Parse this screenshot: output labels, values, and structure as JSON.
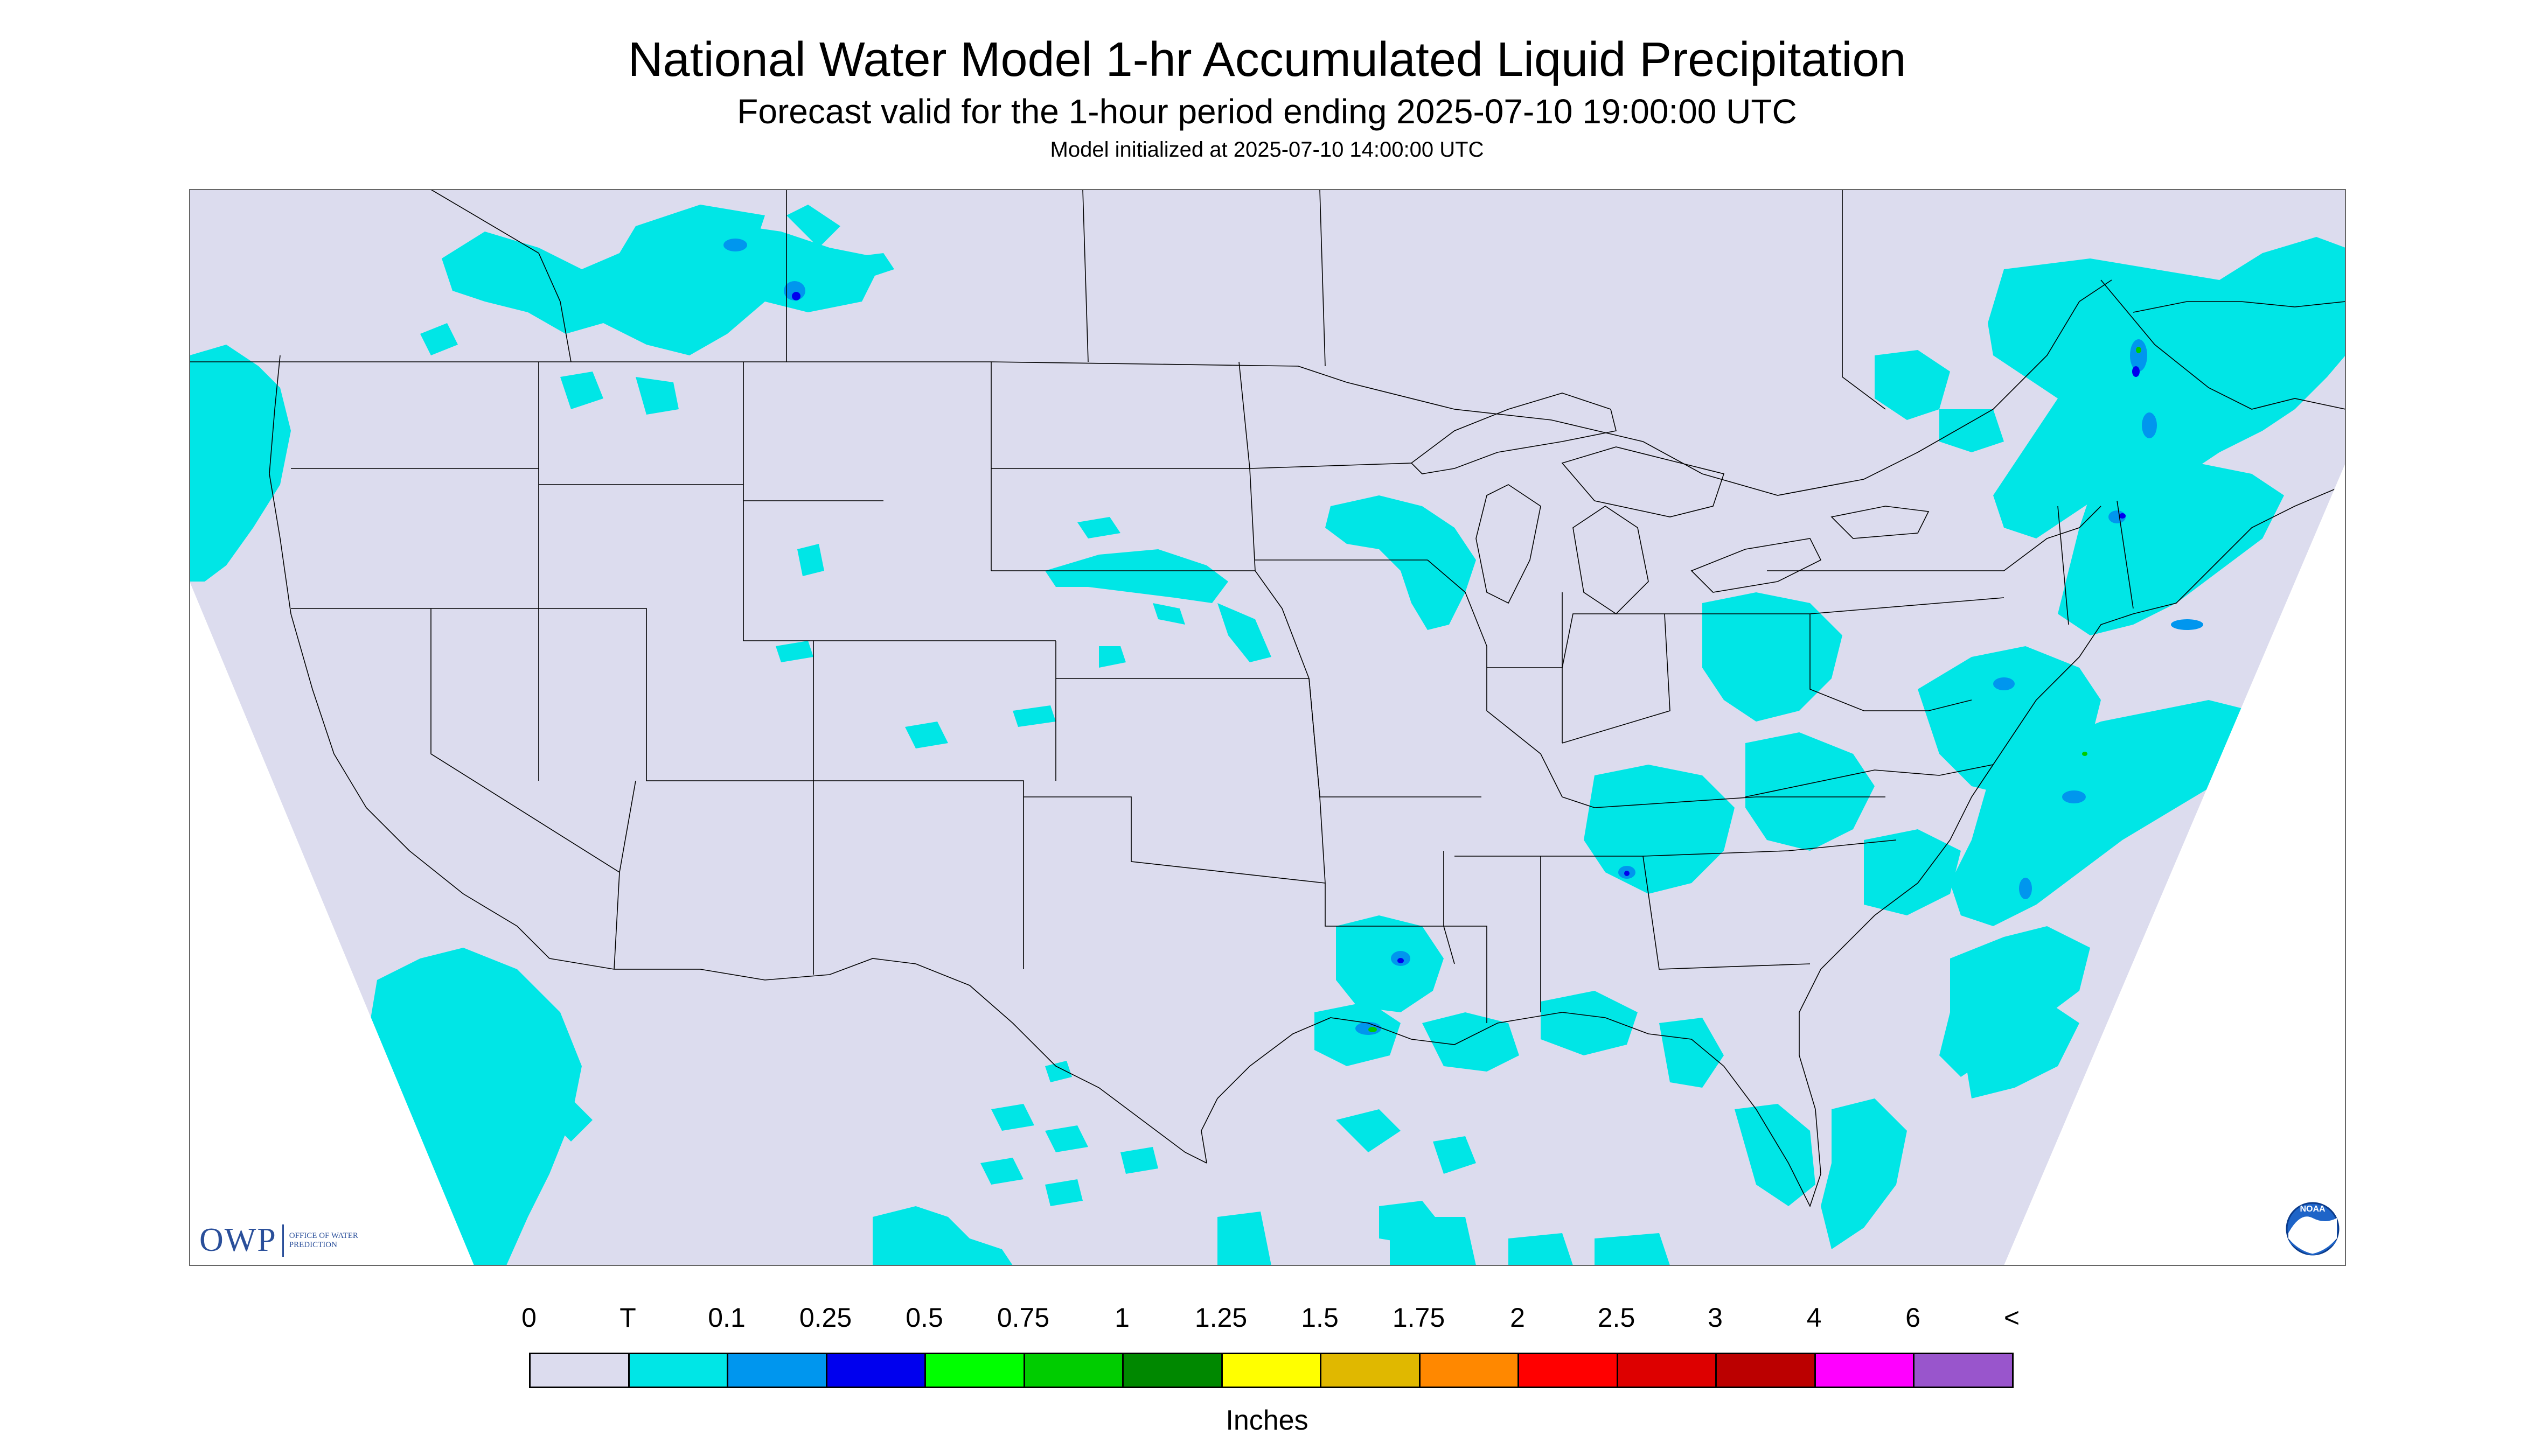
{
  "title": "National Water Model 1-hr Accumulated Liquid Precipitation",
  "subtitle": "Forecast valid for the 1-hour period ending 2025-07-10 19:00:00 UTC",
  "initialized": "Model initialized at 2025-07-10 14:00:00 UTC",
  "map": {
    "background_color": "#dcdcee",
    "outside_color": "#ffffff",
    "line_color": "#000000"
  },
  "legend": {
    "labels": [
      "0",
      "T",
      "0.1",
      "0.25",
      "0.5",
      "0.75",
      "1",
      "1.25",
      "1.5",
      "1.75",
      "2",
      "2.5",
      "3",
      "4",
      "6",
      "<"
    ],
    "colors": [
      "#dcdcee",
      "#00e6e6",
      "#0096ee",
      "#0000ee",
      "#00ff00",
      "#00cc00",
      "#008800",
      "#ffff00",
      "#e0b800",
      "#ff8800",
      "#ff0000",
      "#dd0000",
      "#bb0000",
      "#ff00ff",
      "#9955cc"
    ],
    "units": "Inches"
  },
  "logos": {
    "owp": {
      "name": "OWP",
      "subtext": "OFFICE OF WATER PREDICTION"
    },
    "noaa": {
      "name": "NOAA"
    }
  }
}
